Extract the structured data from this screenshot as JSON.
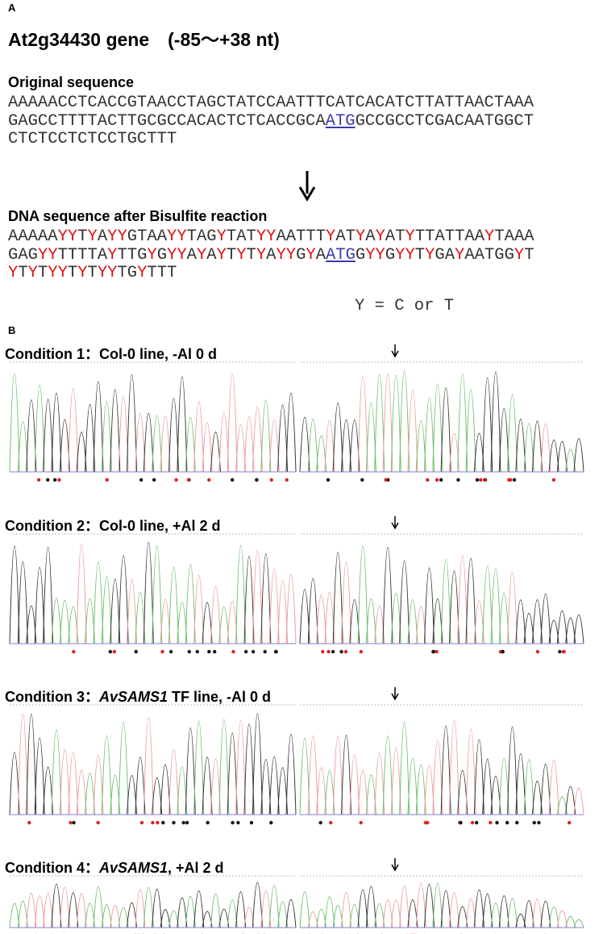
{
  "panel_a": {
    "label": "A",
    "title": "At2g34430 gene　(-85～+38 nt)",
    "original": {
      "heading": "Original sequence",
      "lines": [
        [
          "AAAAACCTCACCGTAACCTAGCTATCCAATTTCATCACATCTTATTAACTAAA"
        ],
        [
          "GAGCCTTTTACTTGCGCCACACTCTCACCGCA",
          "ATG",
          "GCCGCCTCGACAATGGCT"
        ],
        [
          "CTCTCCTCTCCTGCTTT"
        ]
      ]
    },
    "bisulfite": {
      "heading": "DNA sequence after Bisulfite reaction",
      "lines": [
        [
          "AAAAAYYTYAYYGTAAYYTAGYTATYYAATTTYATYAYATYTTATTAAYTAAA"
        ],
        [
          "GAGYYTTTTAYTTGYGYYAYAYTYTYAYYGYA",
          "ATG",
          "GYYGYYTYGAYAATGGYT"
        ],
        [
          "YTYTYYTYTYYTGYTTT"
        ]
      ]
    },
    "legend": "Y = C or T"
  },
  "panel_b": {
    "label": "B",
    "conditions": [
      {
        "parts": [
          {
            "text": "Condition 1：Col-0 line, -Al 0 d",
            "italic": false
          }
        ]
      },
      {
        "parts": [
          {
            "text": "Condition 2：Col-0 line, +Al 2 d",
            "italic": false
          }
        ]
      },
      {
        "parts": [
          {
            "text": "Condition 3：",
            "italic": false
          },
          {
            "text": "AvSAMS1",
            "italic": true
          },
          {
            "text": " TF line, -Al 0 d",
            "italic": false
          }
        ]
      },
      {
        "parts": [
          {
            "text": "Condition 4：",
            "italic": false
          },
          {
            "text": "AvSAMS1",
            "italic": true
          },
          {
            "text": ", +Al 2 d",
            "italic": false
          }
        ]
      }
    ]
  }
}
